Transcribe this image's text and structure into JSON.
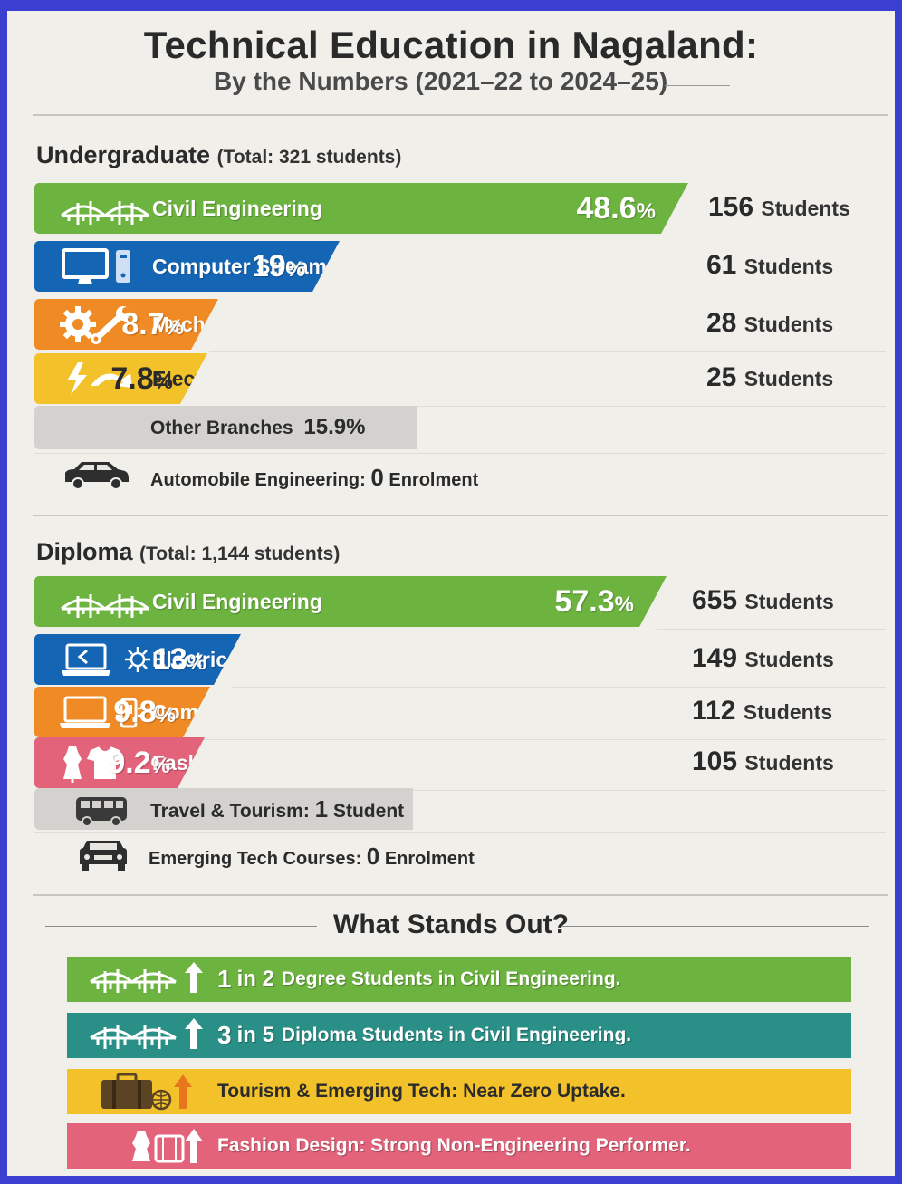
{
  "header": {
    "title": "Technical Education in Nagaland:",
    "subtitle": "By the Numbers (2021–22 to 2024–25)"
  },
  "chart_data": [
    {
      "type": "bar",
      "title": "Undergraduate",
      "total_label": "(Total: 321 students)",
      "series": [
        {
          "name": "Civil Engineering",
          "percent": 48.6,
          "pct_label": "48.6",
          "students": 156,
          "students_label": "156",
          "color": "#6db33f"
        },
        {
          "name": "Computer Streams (CE + CSE)",
          "percent": 19,
          "pct_label": "19",
          "students": 61,
          "students_label": "61",
          "color": "#1565b5"
        },
        {
          "name": "Mechanical Engineering",
          "percent": 8.7,
          "pct_label": "8.7",
          "students": 28,
          "students_label": "28",
          "color": "#f08a24"
        },
        {
          "name": "Electrical Engineering",
          "percent": 7.8,
          "pct_label": "7.8",
          "students": 25,
          "students_label": "25",
          "color": "#f3c22b"
        }
      ],
      "other": {
        "label": "Other Branches",
        "percent": 15.9,
        "pct_label": "15.9%",
        "color": "#d3d2cf"
      },
      "zero_row": {
        "label": "Automobile Engineering:",
        "value": "0",
        "unit": "Enrolment"
      }
    },
    {
      "type": "bar",
      "title": "Diploma",
      "total_label": "(Total: 1,144 students)",
      "series": [
        {
          "name": "Civil Engineering",
          "percent": 57.3,
          "pct_label": "57.3",
          "students": 655,
          "students_label": "655",
          "color": "#6db33f"
        },
        {
          "name": "Electrical & Electronics Engg.",
          "percent": 13,
          "pct_label": "13",
          "students": 149,
          "students_label": "149",
          "color": "#1565b5"
        },
        {
          "name": "Computer Science & Engg.",
          "percent": 9.8,
          "pct_label": "9.8",
          "students": 112,
          "students_label": "112",
          "color": "#f08a24"
        },
        {
          "name": "Fashion Design",
          "percent": 9.2,
          "pct_label": "9.2",
          "students": 105,
          "students_label": "105",
          "color": "#e2637a"
        }
      ],
      "other": {
        "label": "Travel & Tourism:",
        "value": "1",
        "unit": "Student",
        "color": "#d3d2cf"
      },
      "zero_row": {
        "label": "Emerging Tech Courses:",
        "value": "0",
        "unit": "Enrolment"
      }
    }
  ],
  "units": {
    "percent_sign": "%",
    "students_word": "Students"
  },
  "standout": {
    "title": "What Stands Out?",
    "items": [
      {
        "num": "1",
        "mid": "in 2",
        "text": "Degree Students in Civil Engineering.",
        "color": "#6db33f"
      },
      {
        "num": "3",
        "mid": "in 5",
        "text": "Diploma Students in Civil Engineering.",
        "color": "#2a9087"
      },
      {
        "text": "Tourism & Emerging Tech: Near Zero Uptake.",
        "color": "#f3c22b"
      },
      {
        "text": "Fashion Design: Strong Non-Engineering Performer.",
        "color": "#e2637a"
      }
    ]
  },
  "icons": {
    "civil": "bridge-icon",
    "computer": "computer-icon",
    "mechanical": "gear-wrench-icon",
    "electrical": "lightning-icon",
    "car": "car-icon",
    "laptop": "laptop-icon",
    "fashion": "dress-icon",
    "bus": "bus-icon",
    "luggage": "suitcase-icon"
  }
}
